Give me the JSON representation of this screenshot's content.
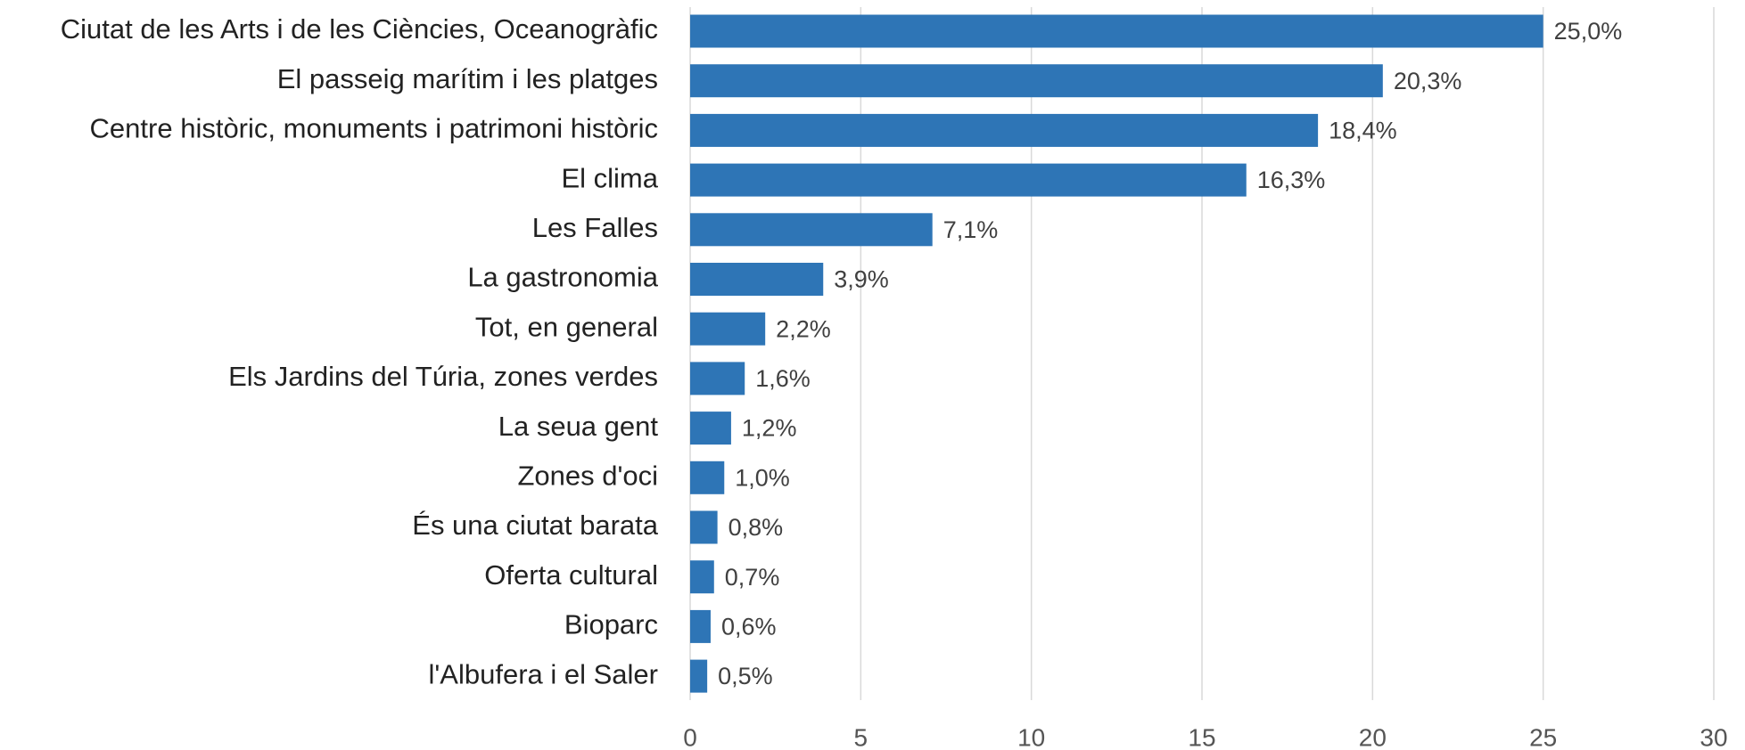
{
  "chart_data": {
    "type": "bar",
    "orientation": "horizontal",
    "categories": [
      "Ciutat de les Arts i de les Ciències, Oceanogràfic",
      "El passeig marítim i les platges",
      "Centre històric, monuments i patrimoni històric",
      "El clima",
      "Les Falles",
      "La gastronomia",
      "Tot, en general",
      "Els Jardins del Túria, zones verdes",
      "La seua gent",
      "Zones d'oci",
      "És una ciutat barata",
      "Oferta cultural",
      "Bioparc",
      "l'Albufera i el Saler"
    ],
    "values": [
      25.0,
      20.3,
      18.4,
      16.3,
      7.1,
      3.9,
      2.2,
      1.6,
      1.2,
      1.0,
      0.8,
      0.7,
      0.6,
      0.5
    ],
    "value_labels": [
      "25,0%",
      "20,3%",
      "18,4%",
      "16,3%",
      "7,1%",
      "3,9%",
      "2,2%",
      "1,6%",
      "1,2%",
      "1,0%",
      "0,8%",
      "0,7%",
      "0,6%",
      "0,5%"
    ],
    "color": "#2e75b6",
    "xlim": [
      0,
      30
    ],
    "xticks": [
      0,
      5,
      10,
      15,
      20,
      25,
      30
    ],
    "grid": true
  }
}
